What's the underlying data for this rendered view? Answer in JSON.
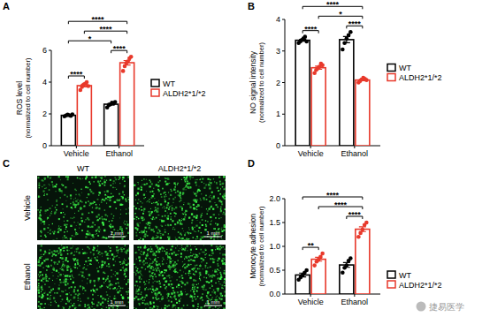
{
  "chart_data": [
    {
      "type": "bar",
      "y_label": [
        "ROS level",
        "(normalized to cell number)"
      ],
      "categories": [
        "Vehicle",
        "Ethanol"
      ],
      "ylim": [
        0,
        6
      ],
      "yticks": [
        0,
        2,
        4,
        6
      ],
      "legend": "right",
      "series": [
        {
          "name": "WT",
          "color": "#000000",
          "values": [
            1.91,
            2.61
          ],
          "errors": [
            0.03,
            0.05
          ],
          "points": [
            [
              1.85,
              1.9,
              1.95,
              1.92,
              1.88,
              1.97
            ],
            [
              2.4,
              2.55,
              2.6,
              2.7,
              2.65,
              2.75
            ]
          ]
        },
        {
          "name": "ALDH2*1/*2",
          "color": "#e8392b",
          "values": [
            3.78,
            5.22
          ],
          "errors": [
            0.08,
            0.14
          ],
          "points": [
            [
              3.5,
              3.7,
              3.85,
              3.9,
              4.0,
              3.75
            ],
            [
              4.7,
              5.0,
              5.2,
              5.3,
              5.5,
              5.6
            ]
          ]
        }
      ],
      "brackets": [
        {
          "label": "****",
          "from": [
            0,
            0
          ],
          "to": [
            1,
            0
          ]
        },
        {
          "label": "****",
          "from": [
            0,
            1
          ],
          "to": [
            1,
            1
          ]
        },
        {
          "label": "*",
          "from": [
            0,
            0
          ],
          "to": [
            0,
            1
          ]
        },
        {
          "label": "****",
          "from": [
            1,
            0
          ],
          "to": [
            1,
            1
          ]
        },
        {
          "label": "****",
          "from": [
            0,
            0
          ],
          "to": [
            1,
            1
          ]
        }
      ]
    },
    {
      "type": "bar",
      "y_label": [
        "NO signal intensity",
        "(normalized to cell number)"
      ],
      "categories": [
        "Vehicle",
        "Ethanol"
      ],
      "ylim": [
        0,
        4
      ],
      "yticks": [
        0,
        1,
        2,
        3,
        4
      ],
      "legend": "right",
      "series": [
        {
          "name": "WT",
          "color": "#000000",
          "values": [
            3.34,
            3.36
          ],
          "errors": [
            0.03,
            0.1
          ],
          "points": [
            [
              3.25,
              3.3,
              3.35,
              3.4,
              3.45,
              3.3
            ],
            [
              3.05,
              3.25,
              3.4,
              3.5,
              3.6
            ]
          ]
        },
        {
          "name": "ALDH2*1/*2",
          "color": "#e8392b",
          "values": [
            2.47,
            2.08
          ],
          "errors": [
            0.05,
            0.02
          ],
          "points": [
            [
              2.3,
              2.4,
              2.45,
              2.5,
              2.6,
              2.55
            ],
            [
              2.0,
              2.05,
              2.1,
              2.15,
              2.12,
              2.08
            ]
          ]
        }
      ],
      "brackets": [
        {
          "label": "****",
          "from": [
            0,
            0
          ],
          "to": [
            1,
            0
          ]
        },
        {
          "label": "****",
          "from": [
            0,
            1
          ],
          "to": [
            1,
            1
          ]
        },
        {
          "label": "*",
          "from": [
            1,
            0
          ],
          "to": [
            1,
            1
          ]
        },
        {
          "label": "****",
          "from": [
            0,
            0
          ],
          "to": [
            1,
            1
          ]
        }
      ]
    },
    {
      "type": "bar",
      "y_label": [
        "Monocyte adhesion",
        "(normalized to cell number)"
      ],
      "categories": [
        "Vehicle",
        "Ethanol"
      ],
      "ylim": [
        0,
        2
      ],
      "yticks": [
        {
          "value": 0,
          "label": "0.0"
        },
        {
          "value": 0.5,
          "label": "0.5"
        },
        {
          "value": 1,
          "label": "1.0"
        },
        {
          "value": 1.5,
          "label": "1.5"
        },
        {
          "value": 2,
          "label": "2.0"
        }
      ],
      "legend": "lower right",
      "series": [
        {
          "name": "WT",
          "color": "#000000",
          "values": [
            0.4,
            0.61
          ],
          "errors": [
            0.04,
            0.05
          ],
          "points": [
            [
              0.3,
              0.35,
              0.4,
              0.45,
              0.5
            ],
            [
              0.45,
              0.55,
              0.6,
              0.7,
              0.75
            ]
          ]
        },
        {
          "name": "ALDH2*1/*2",
          "color": "#e8392b",
          "values": [
            0.73,
            1.36
          ],
          "errors": [
            0.04,
            0.05
          ],
          "points": [
            [
              0.6,
              0.68,
              0.72,
              0.78,
              0.85
            ],
            [
              1.2,
              1.28,
              1.35,
              1.45,
              1.5
            ]
          ]
        }
      ],
      "brackets": [
        {
          "label": "**",
          "from": [
            0,
            0
          ],
          "to": [
            1,
            0
          ]
        },
        {
          "label": "****",
          "from": [
            0,
            1
          ],
          "to": [
            1,
            1
          ]
        },
        {
          "label": "****",
          "from": [
            1,
            0
          ],
          "to": [
            1,
            1
          ]
        },
        {
          "label": "****",
          "from": [
            0,
            0
          ],
          "to": [
            1,
            1
          ]
        }
      ]
    }
  ],
  "panel_labels": [
    "A",
    "B",
    "C",
    "D"
  ],
  "image_panel": {
    "columns": [
      "WT",
      "ALDH2*1/*2"
    ],
    "rows": [
      "Vehicle",
      "Ethanol"
    ],
    "scale_bar": "1 mm"
  },
  "watermark": "捷易医学"
}
